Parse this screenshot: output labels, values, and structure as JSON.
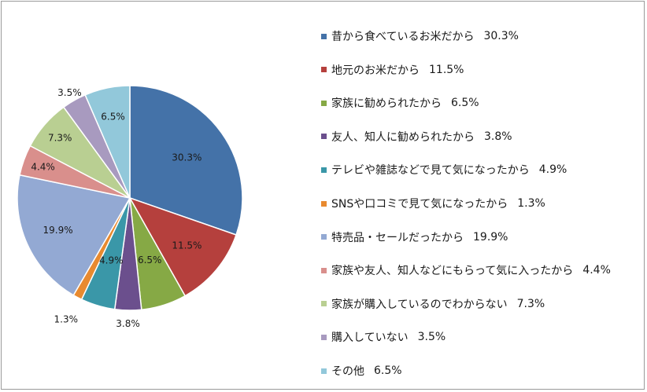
{
  "chart_data": {
    "type": "pie",
    "title": "",
    "slices": [
      {
        "label": "昔から食べているお米だから",
        "value": 30.3,
        "value_label": "30.3%",
        "color": "#4472a8"
      },
      {
        "label": "地元のお米だから",
        "value": 11.5,
        "value_label": "11.5%",
        "color": "#b5403d"
      },
      {
        "label": "家族に勧められたから",
        "value": 6.5,
        "value_label": "6.5%",
        "color": "#86a945"
      },
      {
        "label": "友人、知人に勧められたから",
        "value": 3.8,
        "value_label": "3.8%",
        "color": "#6b4f8d"
      },
      {
        "label": "テレビや雑誌などで見て気になったから",
        "value": 4.9,
        "value_label": "4.9%",
        "color": "#3a97a8"
      },
      {
        "label": "SNSや口コミで見て気になったから",
        "value": 1.3,
        "value_label": "1.3%",
        "color": "#e88a2f"
      },
      {
        "label": "特売品・セールだったから",
        "value": 19.9,
        "value_label": "19.9%",
        "color": "#93a9d3"
      },
      {
        "label": "家族や友人、知人などにもらって気に入ったから",
        "value": 4.4,
        "value_label": "4.4%",
        "color": "#d98f8c"
      },
      {
        "label": "家族が購入しているのでわからない",
        "value": 7.3,
        "value_label": "7.3%",
        "color": "#b9cf92"
      },
      {
        "label": "購入していない",
        "value": 3.5,
        "value_label": "3.5%",
        "color": "#a89abf"
      },
      {
        "label": "その他",
        "value": 6.5,
        "value_label": "6.5%",
        "color": "#92c8da"
      }
    ],
    "legend_position": "right"
  }
}
